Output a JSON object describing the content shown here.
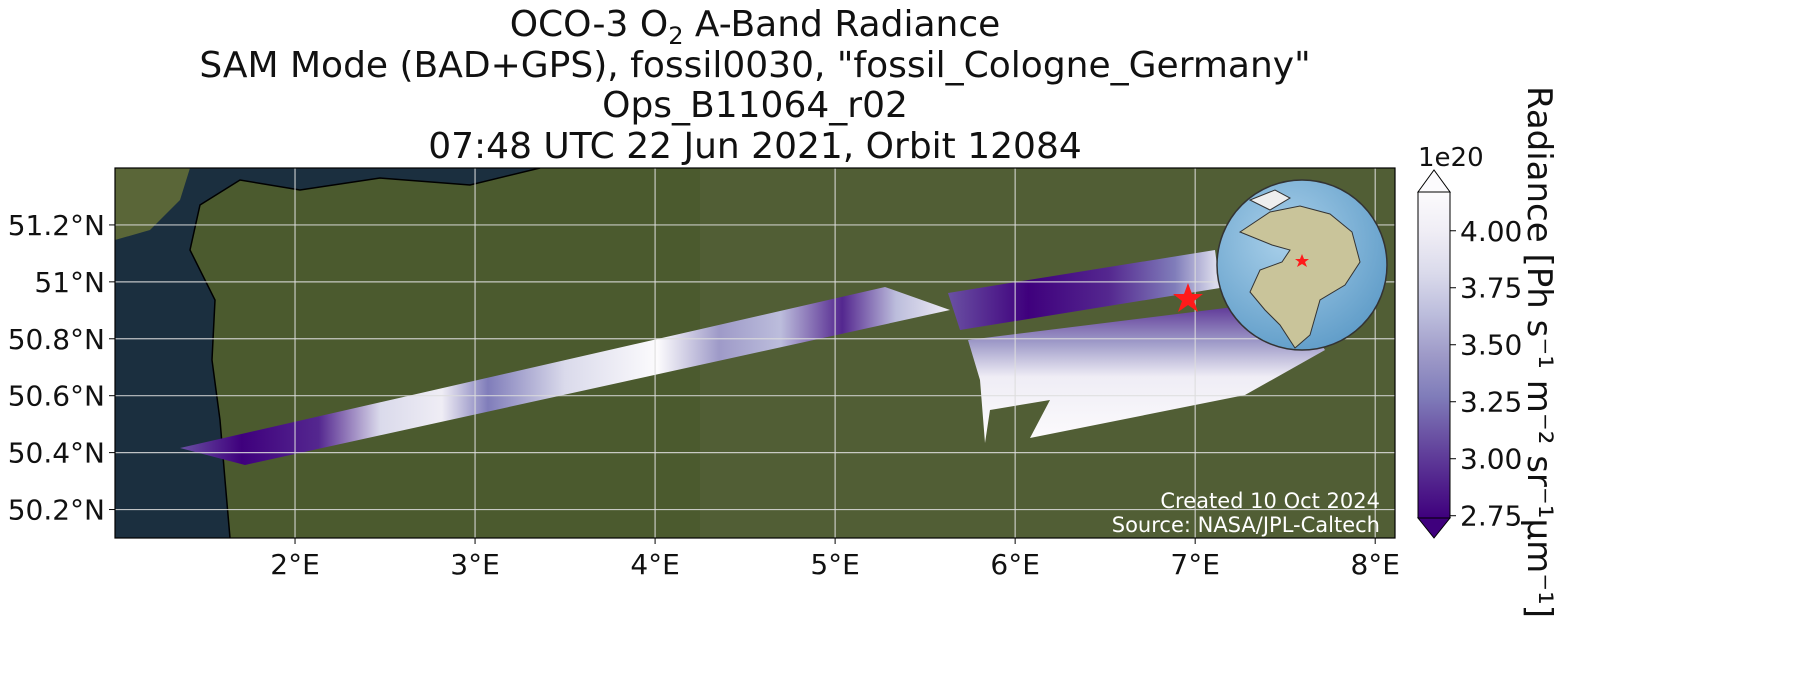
{
  "map": {
    "title": {
      "line1": {
        "before": "OCO-3 O",
        "sub": "2",
        "after": " A-Band Radiance"
      },
      "line2": "SAM Mode (BAD+GPS), fossil0030, \"fossil_Cologne_Germany\"",
      "line3": "Ops_B11064_r02",
      "line4": "07:48 UTC 22 Jun 2021, Orbit 12084"
    },
    "xlim": [
      1.0,
      8.11
    ],
    "ylim": [
      50.1,
      51.4
    ],
    "xticks": [
      {
        "value": 2,
        "label": "2°E"
      },
      {
        "value": 3,
        "label": "3°E"
      },
      {
        "value": 4,
        "label": "4°E"
      },
      {
        "value": 5,
        "label": "5°E"
      },
      {
        "value": 6,
        "label": "6°E"
      },
      {
        "value": 7,
        "label": "7°E"
      },
      {
        "value": 8,
        "label": "8°E"
      }
    ],
    "yticks": [
      {
        "value": 50.2,
        "label": "50.2°N"
      },
      {
        "value": 50.4,
        "label": "50.4°N"
      },
      {
        "value": 50.6,
        "label": "50.6°N"
      },
      {
        "value": 50.8,
        "label": "50.8°N"
      },
      {
        "value": 51,
        "label": "51°N"
      },
      {
        "value": 51.2,
        "label": "51.2°N"
      }
    ],
    "grid": true,
    "colorbar": {
      "label": "Radiance [Ph s⁻¹ m⁻² sr⁻¹μm⁻¹]",
      "exponent": "1e20",
      "lim": [
        2.74,
        4.17
      ],
      "ticks": [
        {
          "value": 2.75,
          "label": "2.75"
        },
        {
          "value": 3,
          "label": "3.00"
        },
        {
          "value": 3.25,
          "label": "3.25"
        },
        {
          "value": 3.5,
          "label": "3.50"
        },
        {
          "value": 3.75,
          "label": "3.75"
        },
        {
          "value": 4,
          "label": "4.00"
        }
      ],
      "colors": [
        "#3f007d",
        "#54278f",
        "#6a51a3",
        "#807dba",
        "#9e9ac8",
        "#bcbddc",
        "#dadaeb",
        "#efedf5",
        "#fcfbfd"
      ]
    },
    "credits": [
      "Created 10 Oct 2024",
      "Source: NASA/JPL-Caltech"
    ]
  }
}
